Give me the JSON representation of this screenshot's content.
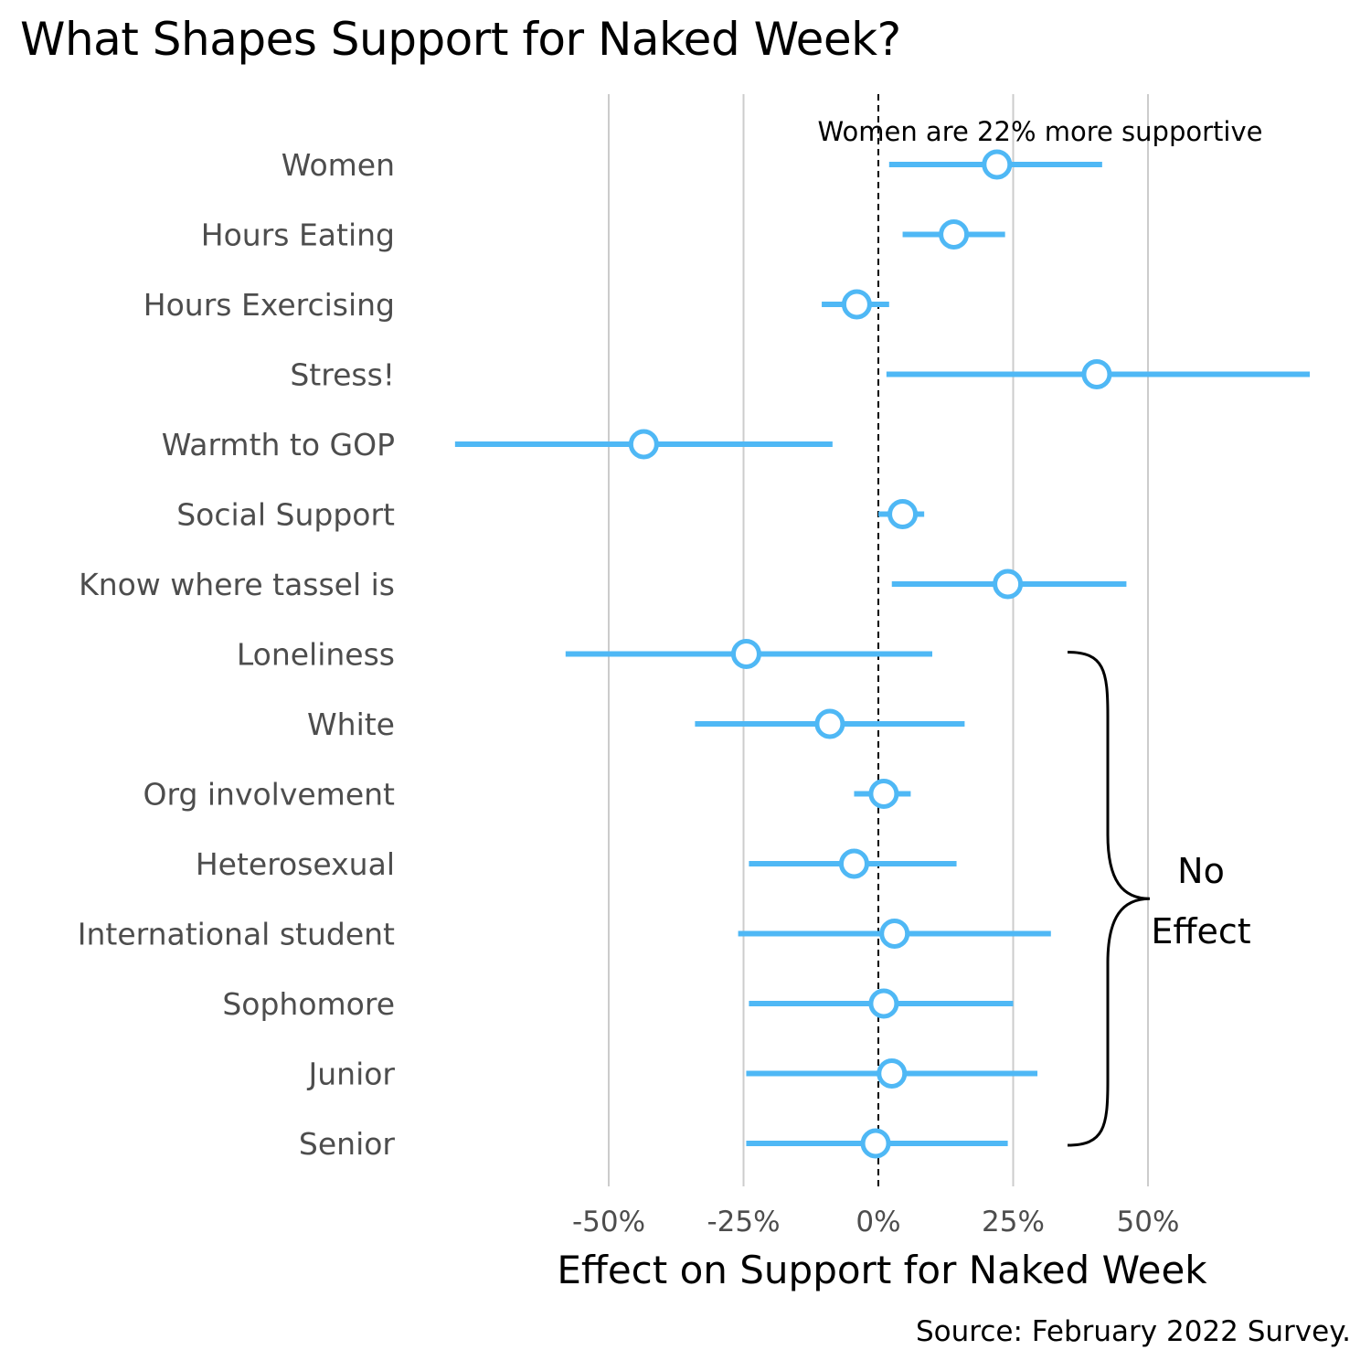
{
  "colors": {
    "accent": "#4fb8f5",
    "grid": "#cccccc",
    "zero_line": "#000000"
  },
  "chart_data": {
    "type": "scatter",
    "subtype": "coefficient-plot",
    "title": "What Shapes Support for Naked Week?",
    "xlabel": "Effect on Support for Naked Week",
    "ylabel": "",
    "xlim": [
      -80,
      80
    ],
    "x_ticks": [
      -50,
      -25,
      0,
      25,
      50
    ],
    "x_tick_labels": [
      "-50%",
      "-25%",
      "0%",
      "25%",
      "50%"
    ],
    "grid": "vertical",
    "zero_line": "dashed",
    "categories": [
      "Women",
      "Hours Eating",
      "Hours Exercising",
      "Stress!",
      "Warmth to GOP",
      "Social Support",
      "Know where tassel is",
      "Loneliness",
      "White",
      "Org involvement",
      "Heterosexual",
      "International student",
      "Sophomore",
      "Junior",
      "Senior"
    ],
    "estimates": [
      22,
      14,
      -4,
      40.5,
      -43.5,
      4.5,
      24,
      -24.5,
      -9,
      1,
      -4.5,
      3,
      1,
      2.5,
      -0.5
    ],
    "lower": [
      2,
      4.5,
      -10.5,
      1.5,
      -78.5,
      0,
      2.5,
      -58,
      -34,
      -4.5,
      -24,
      -26,
      -24,
      -24.5,
      -24.5
    ],
    "upper": [
      41.5,
      23.5,
      2,
      80,
      -8.5,
      8.5,
      46,
      10,
      16,
      6,
      14.5,
      32,
      25,
      29.5,
      24
    ],
    "annotations": [
      {
        "text": "Women are 22% more supportive"
      },
      {
        "text_lines": [
          "No",
          "Effect"
        ]
      }
    ],
    "caption": "Source: February 2022 Survey."
  }
}
